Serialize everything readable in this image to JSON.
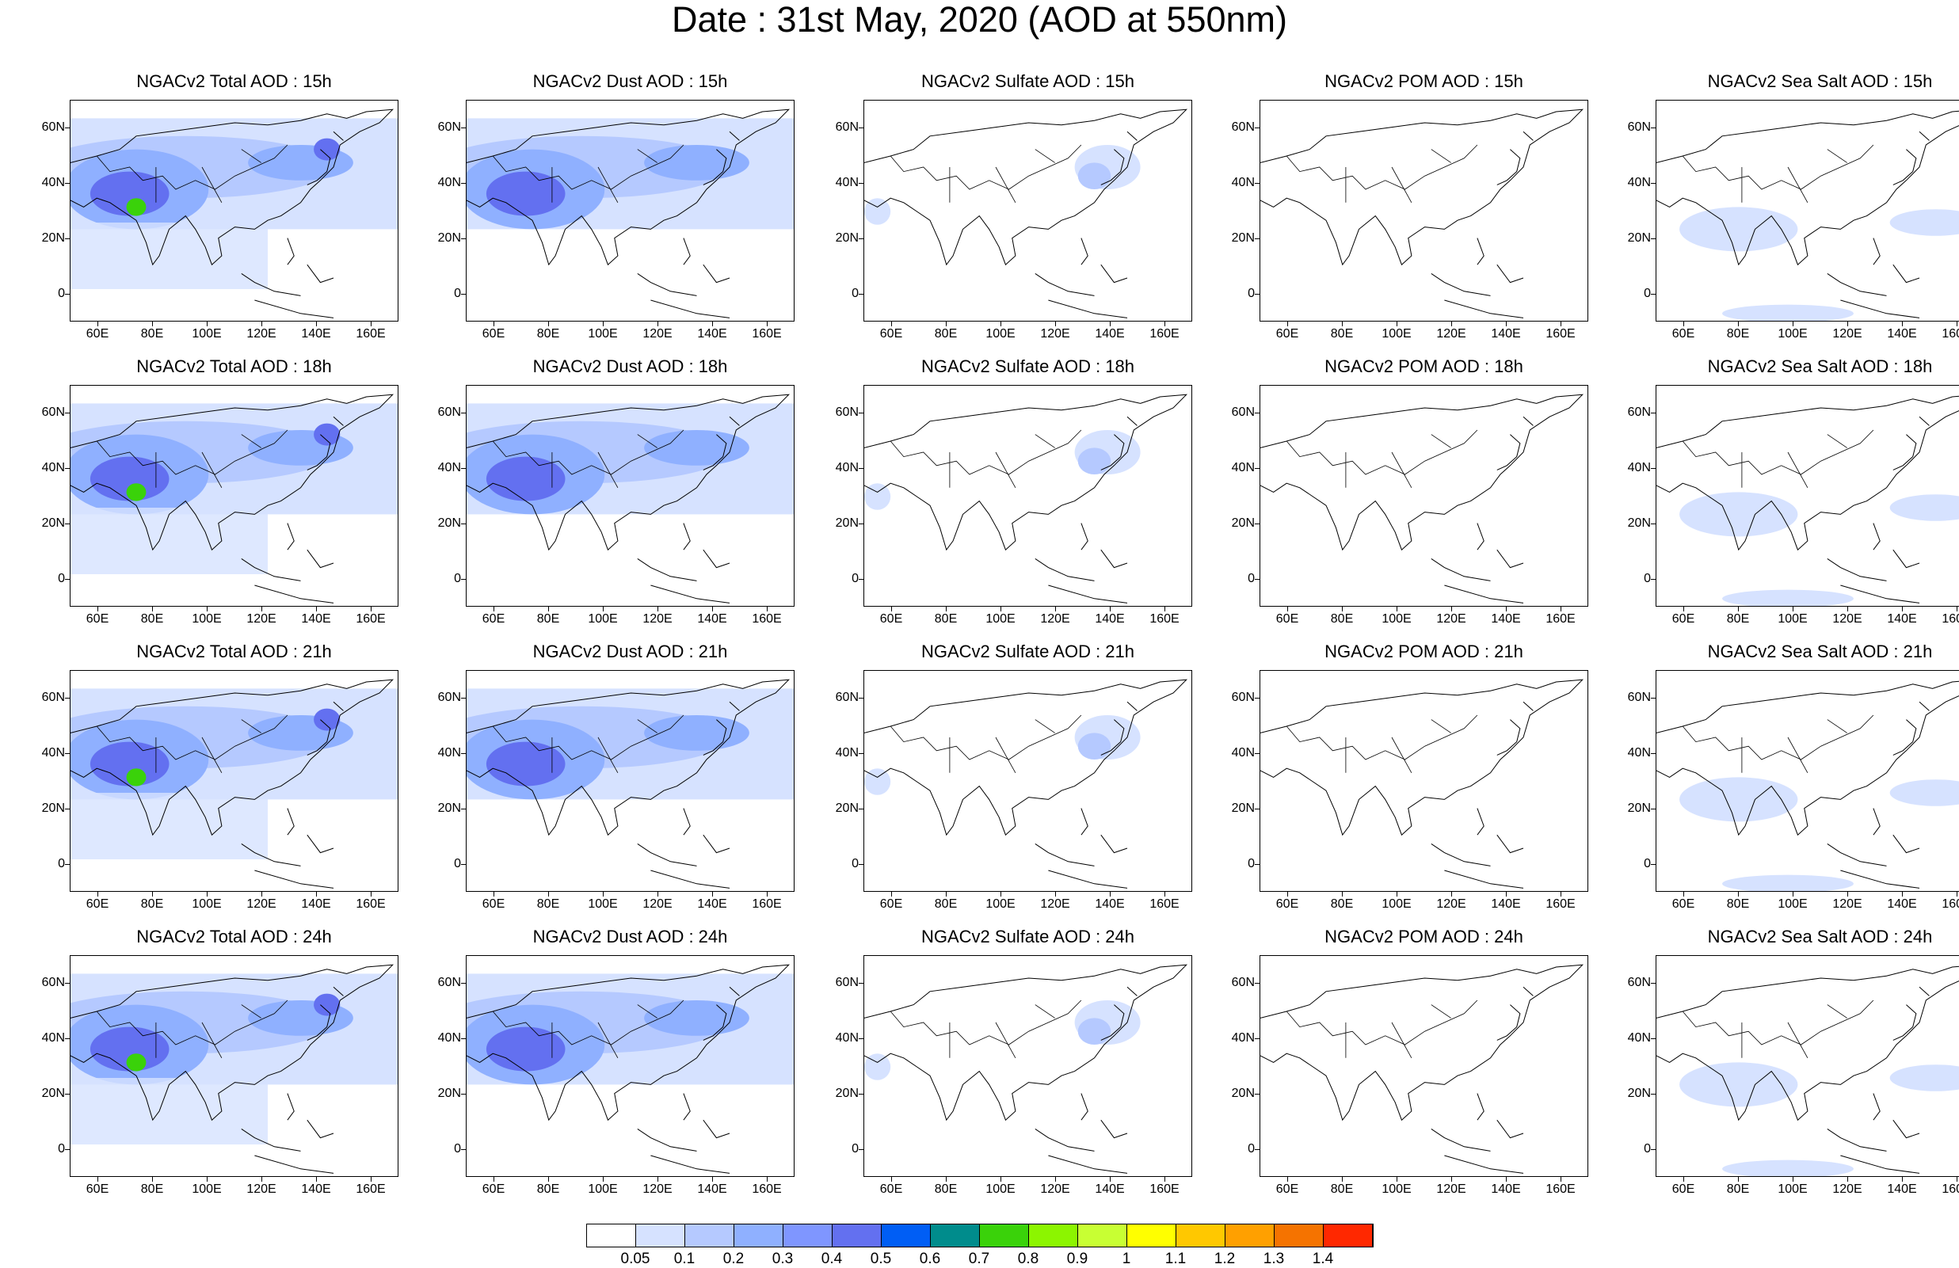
{
  "title": "Date : 31st May, 2020 (AOD at 550nm)",
  "rows": [
    {
      "hour": "15h",
      "titles": [
        "NGACv2 Total AOD : 15h",
        "NGACv2 Dust AOD : 15h",
        "NGACv2 Sulfate AOD : 15h",
        "NGACv2 POM AOD : 15h",
        "NGACv2 Sea Salt AOD : 15h"
      ]
    },
    {
      "hour": "18h",
      "titles": [
        "NGACv2 Total AOD : 18h",
        "NGACv2 Dust AOD : 18h",
        "NGACv2 Sulfate AOD : 18h",
        "NGACv2 POM AOD : 18h",
        "NGACv2 Sea Salt AOD : 18h"
      ]
    },
    {
      "hour": "21h",
      "titles": [
        "NGACv2 Total AOD : 21h",
        "NGACv2 Dust AOD : 21h",
        "NGACv2 Sulfate AOD : 21h",
        "NGACv2 POM AOD : 21h",
        "NGACv2 Sea Salt AOD : 21h"
      ]
    },
    {
      "hour": "24h",
      "titles": [
        "NGACv2 Total AOD : 24h",
        "NGACv2 Dust AOD : 24h",
        "NGACv2 Sulfate AOD : 24h",
        "NGACv2 POM AOD : 24h",
        "NGACv2 Sea Salt  AOD : 24h"
      ]
    }
  ],
  "y_ticks": [
    "60N",
    "40N",
    "20N",
    "0"
  ],
  "x_ticks": [
    "60E",
    "80E",
    "100E",
    "120E",
    "140E",
    "160E"
  ],
  "colorbar": {
    "labels": [
      "0.05",
      "0.1",
      "0.2",
      "0.3",
      "0.4",
      "0.5",
      "0.6",
      "0.7",
      "0.8",
      "0.9",
      "1",
      "1.1",
      "1.2",
      "1.3",
      "1.4"
    ],
    "colors": [
      "#ffffff",
      "#d6e2ff",
      "#b5c9ff",
      "#8fb0ff",
      "#7f96ff",
      "#6370f0",
      "#005ef5",
      "#008c8c",
      "#3ad20a",
      "#8cf500",
      "#c8ff33",
      "#ffff00",
      "#ffc800",
      "#ffa000",
      "#f57300",
      "#ff2800"
    ]
  }
}
